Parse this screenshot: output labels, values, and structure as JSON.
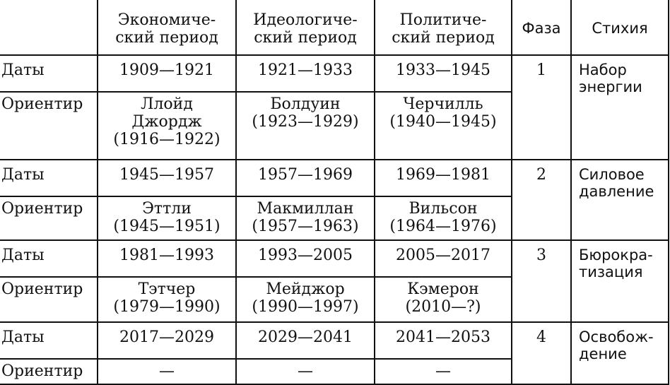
{
  "headers": {
    "economic": [
      "Экономиче-",
      "ский период"
    ],
    "ideological": [
      "Идеологиче-",
      "ский период"
    ],
    "political": [
      "Политиче-",
      "ский период"
    ],
    "phase": "Фаза",
    "stage": "Стихия"
  },
  "row_labels": {
    "dates": "Даты",
    "landmark": "Ориентир"
  },
  "phases": [
    {
      "phase": "1",
      "stage": [
        "Набор",
        "энергии"
      ],
      "dates": [
        "1909—1921",
        "1921—1933",
        "1933—1945"
      ],
      "landmarks": [
        [
          "Ллойд",
          "Джордж",
          "(1916—1922)"
        ],
        [
          "Болдуин",
          "(1923—1929)"
        ],
        [
          "Черчилль",
          "(1940—1945)"
        ]
      ]
    },
    {
      "phase": "2",
      "stage": [
        "Силовое",
        "давление"
      ],
      "dates": [
        "1945—1957",
        "1957—1969",
        "1969—1981"
      ],
      "landmarks": [
        [
          "Эттли",
          "(1945—1951)"
        ],
        [
          "Макмиллан",
          "(1957—1963)"
        ],
        [
          "Вильсон",
          "(1964—1976)"
        ]
      ]
    },
    {
      "phase": "3",
      "stage": [
        "Бюрокра-",
        "тизация"
      ],
      "dates": [
        "1981—1993",
        "1993—2005",
        "2005—2017"
      ],
      "landmarks": [
        [
          "Тэтчер",
          "(1979—1990)"
        ],
        [
          "Мейджор",
          "(1990—1997)"
        ],
        [
          "Кэмерон",
          "(2010—?)"
        ]
      ]
    },
    {
      "phase": "4",
      "stage": [
        "Освобож-",
        "дение"
      ],
      "dates": [
        "2017—2029",
        "2029—2041",
        "2041—2053"
      ],
      "landmarks": [
        [
          "—"
        ],
        [
          "—"
        ],
        [
          "—"
        ]
      ]
    }
  ]
}
